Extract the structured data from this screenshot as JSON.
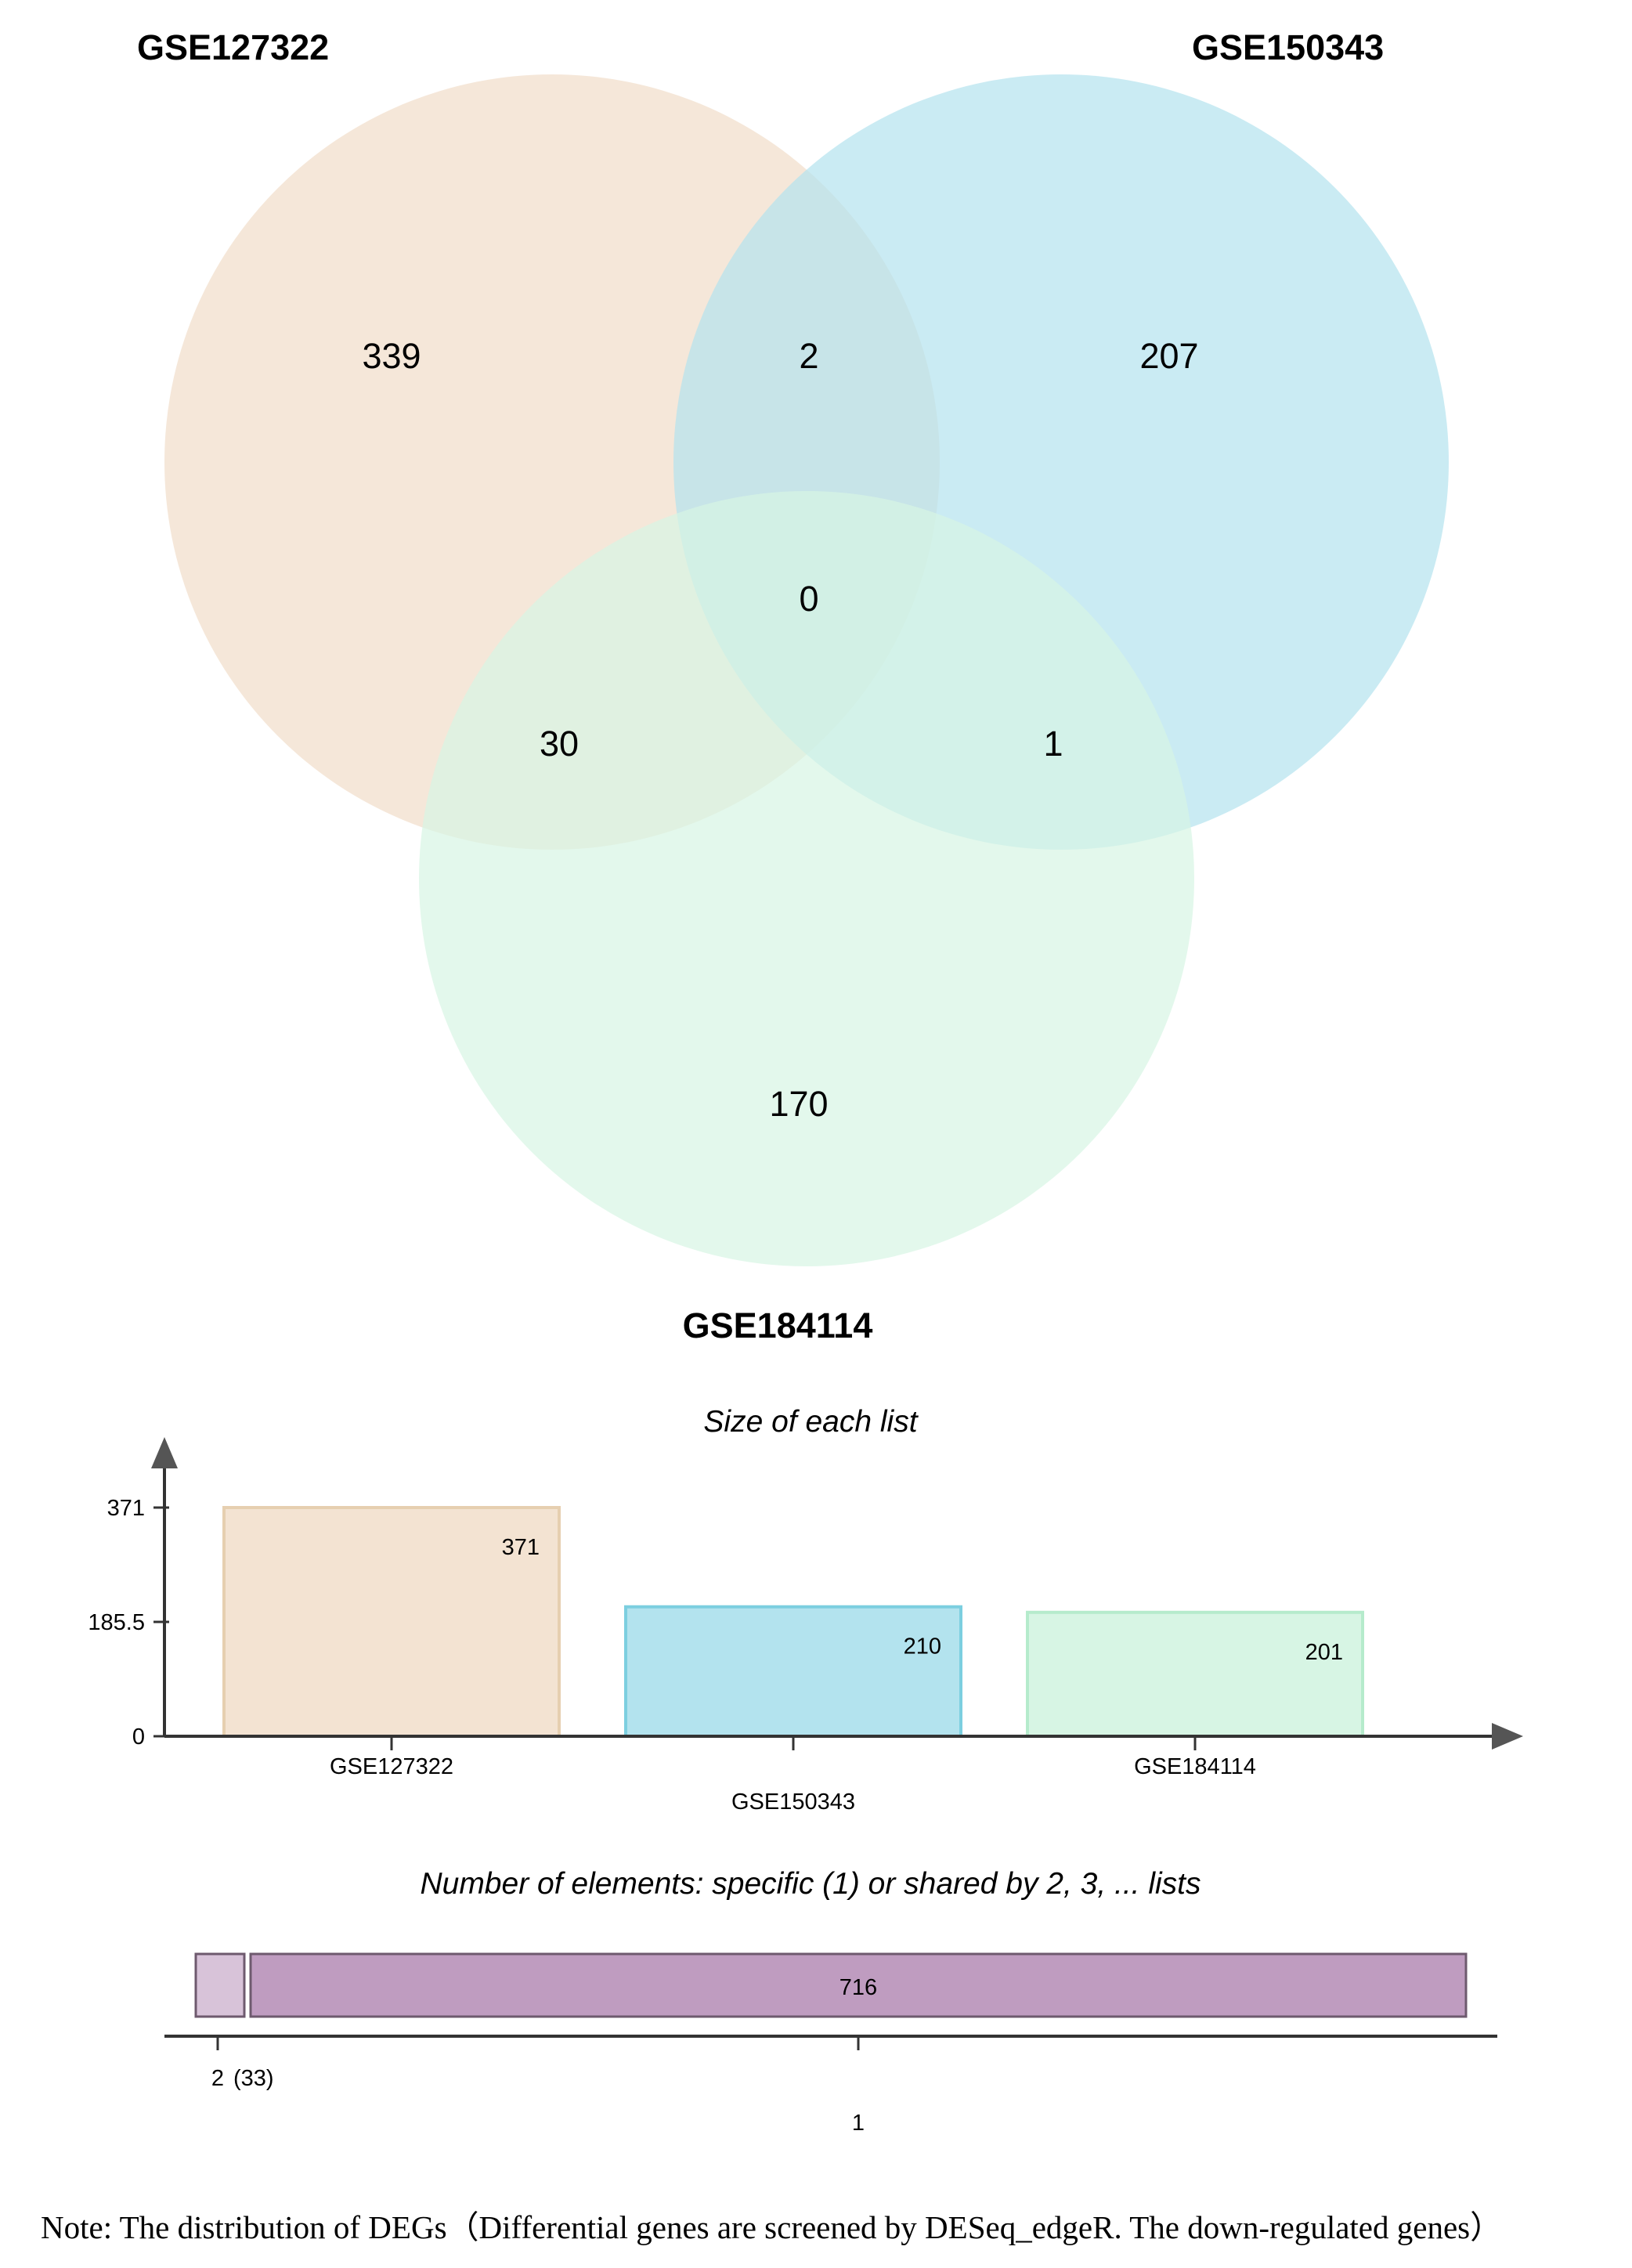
{
  "chart_data": [
    {
      "type": "venn",
      "sets": [
        {
          "name": "GSE127322",
          "color": "#f3e3d2"
        },
        {
          "name": "GSE150343",
          "color": "#b3e3ee"
        },
        {
          "name": "GSE184114",
          "color": "#d7f5e4"
        }
      ],
      "regions": [
        {
          "sets": [
            "GSE127322"
          ],
          "value": 339
        },
        {
          "sets": [
            "GSE150343"
          ],
          "value": 207
        },
        {
          "sets": [
            "GSE184114"
          ],
          "value": 170
        },
        {
          "sets": [
            "GSE127322",
            "GSE150343"
          ],
          "value": 2
        },
        {
          "sets": [
            "GSE127322",
            "GSE184114"
          ],
          "value": 30
        },
        {
          "sets": [
            "GSE150343",
            "GSE184114"
          ],
          "value": 1
        },
        {
          "sets": [
            "GSE127322",
            "GSE150343",
            "GSE184114"
          ],
          "value": 0
        }
      ]
    },
    {
      "type": "bar",
      "title": "Size of each list",
      "categories": [
        "GSE127322",
        "GSE150343",
        "GSE184114"
      ],
      "values": [
        371,
        210,
        201
      ],
      "colors": [
        "#f3e3d2",
        "#b3e3ee",
        "#d7f5e4"
      ],
      "edge_colors": [
        "#e6cfb0",
        "#7ccfe0",
        "#b5ebcc"
      ],
      "yticks": [
        0,
        185.5,
        371
      ],
      "ylim": [
        0,
        371
      ]
    },
    {
      "type": "bar",
      "orientation": "horizontal-stacked",
      "title": "Number of elements: specific (1) or shared by 2, 3, ... lists",
      "segments": [
        {
          "label": "2",
          "value": 33,
          "value_label": "(33)",
          "color": "#d8c3d9"
        },
        {
          "label": "1",
          "value": 716,
          "value_label": "716",
          "color": "#bf9cc0"
        }
      ]
    }
  ],
  "note": "Note: The distribution of DEGs（Differential genes are screened by DESeq_edgeR. The down-regulated genes）"
}
